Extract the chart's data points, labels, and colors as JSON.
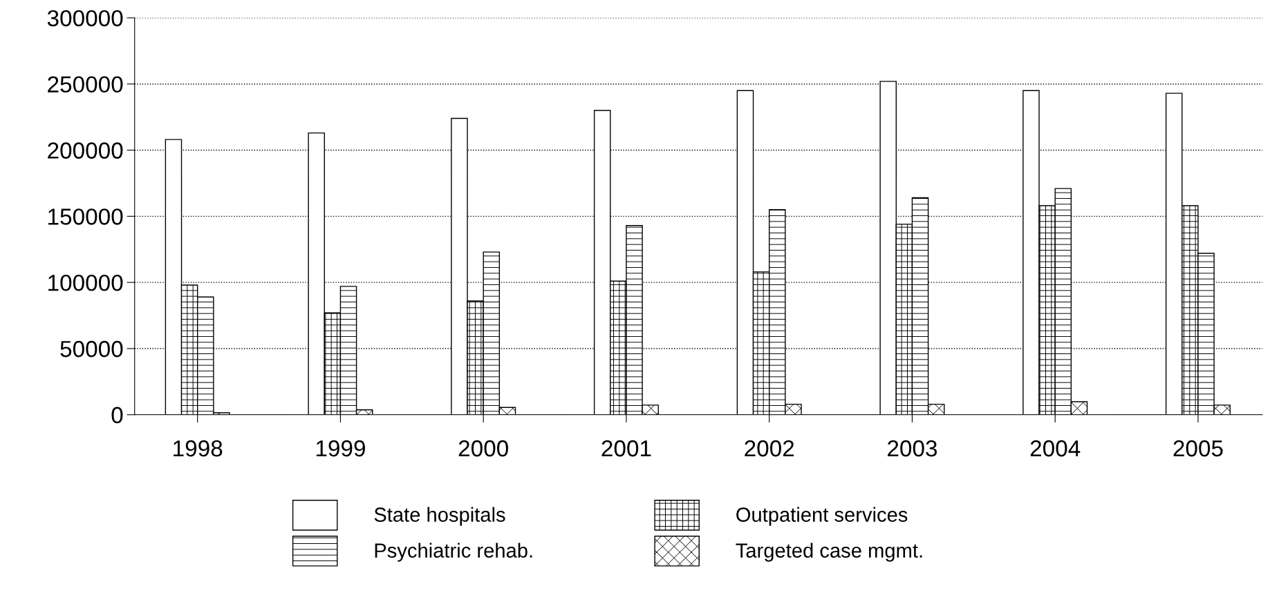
{
  "chart_data": {
    "type": "bar",
    "categories": [
      "1998",
      "1999",
      "2000",
      "2001",
      "2002",
      "2003",
      "2004",
      "2005"
    ],
    "series": [
      {
        "name": "State hospitals",
        "color": "#ffffff",
        "values": [
          208000,
          213000,
          224000,
          230000,
          245000,
          252000,
          245000,
          243000
        ]
      },
      {
        "name": "Outpatient services",
        "color": "#000000",
        "values": [
          98000,
          77000,
          86000,
          101000,
          108000,
          144000,
          158000,
          158000
        ]
      },
      {
        "name": "Psychiatric rehab.",
        "color": "#000000",
        "values": [
          89000,
          97000,
          123000,
          143000,
          155000,
          164000,
          171000,
          122000
        ]
      },
      {
        "name": "Targeted case mgmt.",
        "color": "#000000",
        "values": [
          1500,
          3700,
          5500,
          7300,
          7900,
          7900,
          9800,
          7300
        ]
      }
    ],
    "ylim": [
      0,
      300000
    ],
    "yticks": [
      0,
      50000,
      100000,
      150000,
      200000,
      250000,
      300000
    ],
    "grid": "y",
    "legend": "bottom"
  }
}
